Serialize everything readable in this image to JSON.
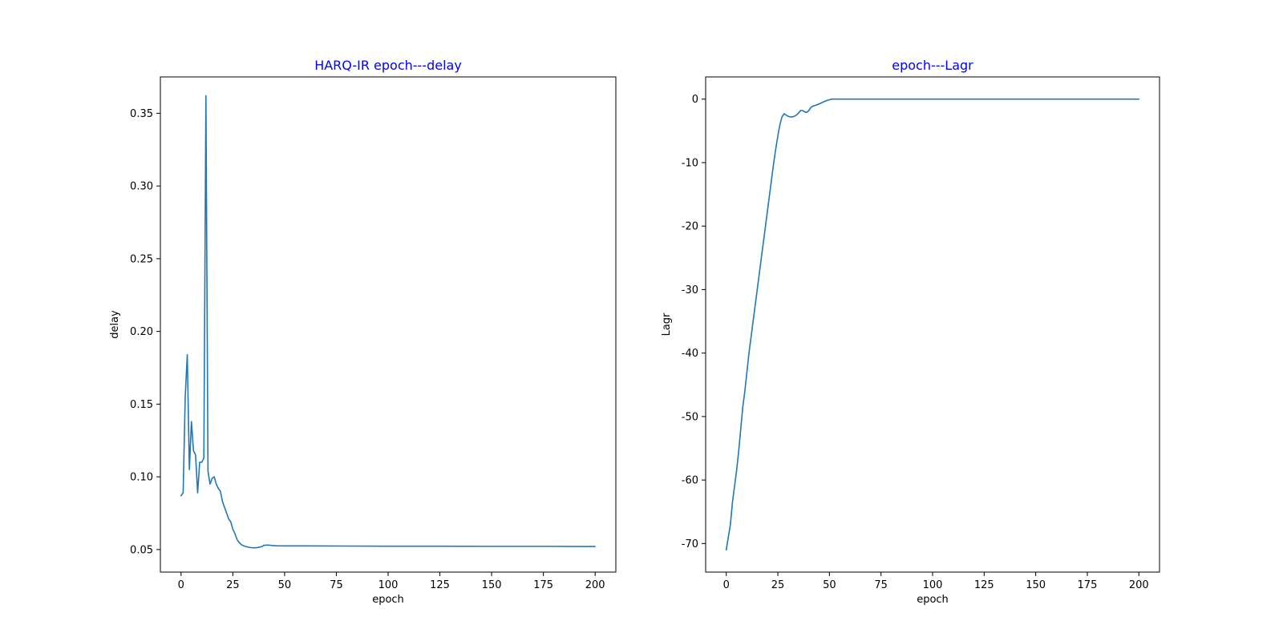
{
  "chart_data": [
    {
      "type": "line",
      "title": "HARQ-IR epoch---delay",
      "xlabel": "epoch",
      "ylabel": "delay",
      "xlim": [
        -10,
        210
      ],
      "ylim": [
        0.0345,
        0.375
      ],
      "xticks": [
        0,
        25,
        50,
        75,
        100,
        125,
        150,
        175,
        200
      ],
      "yticks": [
        0.05,
        0.1,
        0.15,
        0.2,
        0.25,
        0.3,
        0.35
      ],
      "ytick_labels": [
        "0.05",
        "0.10",
        "0.15",
        "0.20",
        "0.25",
        "0.30",
        "0.35"
      ],
      "grid": false,
      "line_color": "#1f77b4",
      "title_color": "#0000ff",
      "series": [
        {
          "x": [
            0,
            1,
            2,
            3,
            4,
            5,
            6,
            7,
            8,
            9,
            10,
            11,
            12,
            13,
            14,
            15,
            16,
            17,
            18,
            19,
            20,
            21,
            22,
            23,
            24,
            25,
            26,
            27,
            28,
            29,
            30,
            31,
            32,
            33,
            34,
            35,
            36,
            37,
            38,
            39,
            40,
            42,
            44,
            46,
            50,
            60,
            80,
            100,
            125,
            150,
            175,
            200
          ],
          "y": [
            0.087,
            0.089,
            0.155,
            0.184,
            0.105,
            0.138,
            0.118,
            0.115,
            0.089,
            0.11,
            0.11,
            0.113,
            0.362,
            0.104,
            0.095,
            0.099,
            0.1,
            0.095,
            0.092,
            0.09,
            0.083,
            0.079,
            0.075,
            0.071,
            0.069,
            0.064,
            0.061,
            0.057,
            0.055,
            0.0535,
            0.0527,
            0.0522,
            0.0518,
            0.0515,
            0.0513,
            0.0512,
            0.0512,
            0.0514,
            0.0517,
            0.052,
            0.0529,
            0.0531,
            0.0528,
            0.0526,
            0.0525,
            0.0525,
            0.0524,
            0.0523,
            0.0523,
            0.0522,
            0.0522,
            0.0521
          ]
        }
      ]
    },
    {
      "type": "line",
      "title": "epoch---Lagr",
      "xlabel": "epoch",
      "ylabel": "Lagr",
      "xlim": [
        -10,
        210
      ],
      "ylim": [
        -74.5,
        3.5
      ],
      "xticks": [
        0,
        25,
        50,
        75,
        100,
        125,
        150,
        175,
        200
      ],
      "yticks": [
        0,
        -10,
        -20,
        -30,
        -40,
        -50,
        -60,
        -70
      ],
      "ytick_labels": [
        "0",
        "-10",
        "-20",
        "-30",
        "-40",
        "-50",
        "-60",
        "-70"
      ],
      "grid": false,
      "line_color": "#1f77b4",
      "title_color": "#0000ff",
      "series": [
        {
          "x": [
            0,
            1,
            2,
            3,
            4,
            5,
            6,
            7,
            8,
            9,
            10,
            11,
            12,
            13,
            14,
            15,
            16,
            17,
            18,
            19,
            20,
            21,
            22,
            23,
            24,
            25,
            26,
            27,
            28,
            29,
            30,
            31,
            32,
            33,
            34,
            35,
            36,
            37,
            38,
            39,
            40,
            41,
            42,
            43,
            44,
            46,
            48,
            50,
            51,
            60,
            100,
            150,
            200
          ],
          "y": [
            -71,
            -69,
            -67,
            -63.5,
            -61,
            -58.5,
            -55.5,
            -52,
            -48.5,
            -46,
            -43,
            -40,
            -37.5,
            -35,
            -32.5,
            -30,
            -27.5,
            -25,
            -22.5,
            -20,
            -17.5,
            -15,
            -12.5,
            -10,
            -7.8,
            -5.8,
            -4,
            -2.8,
            -2.3,
            -2.5,
            -2.7,
            -2.8,
            -2.8,
            -2.7,
            -2.5,
            -2.2,
            -1.8,
            -1.8,
            -2.0,
            -2.1,
            -1.8,
            -1.3,
            -1.1,
            -1.0,
            -0.9,
            -0.6,
            -0.3,
            -0.1,
            0,
            0,
            0,
            0,
            0
          ]
        }
      ]
    }
  ]
}
